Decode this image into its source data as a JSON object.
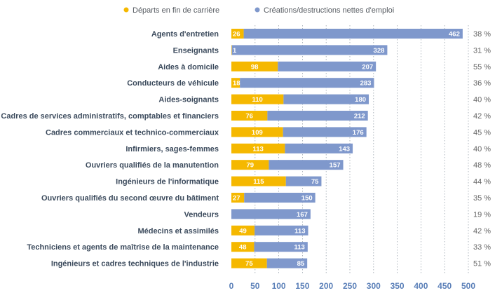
{
  "chart_data": {
    "type": "bar",
    "orientation": "horizontal",
    "stacked": true,
    "categories": [
      "Agents d'entretien",
      "Enseignants",
      "Aides à domicile",
      "Conducteurs de véhicule",
      "Aides-soignants",
      "Cadres de services administratifs, comptables et financiers",
      "Cadres commerciaux et technico-commerciaux",
      "Infirmiers, sages-femmes",
      "Ouvriers qualifiés de la manutention",
      "Ingénieurs de l'informatique",
      "Ouvriers qualifiés du second œuvre du bâtiment",
      "Vendeurs",
      "Médecins et assimilés",
      "Techniciens et agents de maîtrise de la maintenance",
      "Ingénieurs et cadres techniques de l'industrie"
    ],
    "series": [
      {
        "name": "Départs en fin de carrière",
        "color": "#f5b800",
        "values": [
          26,
          1,
          98,
          18,
          110,
          76,
          109,
          113,
          79,
          115,
          27,
          0,
          49,
          48,
          75
        ],
        "labels": [
          "26",
          "1",
          "98",
          "18",
          "110",
          "76",
          "109",
          "113",
          "79",
          "115",
          "27",
          "",
          "49",
          "48",
          "75"
        ]
      },
      {
        "name": "Créations/destructions nettes d'emploi",
        "color": "#7f98cc",
        "values": [
          462,
          328,
          207,
          283,
          180,
          212,
          176,
          143,
          157,
          75,
          150,
          167,
          113,
          113,
          85
        ],
        "labels": [
          "462",
          "328",
          "207",
          "283",
          "180",
          "212",
          "176",
          "143",
          "157",
          "75",
          "150",
          "167",
          "113",
          "113",
          "85"
        ]
      }
    ],
    "percentages": [
      "38 %",
      "31 %",
      "55 %",
      "36 %",
      "40 %",
      "42 %",
      "45 %",
      "40 %",
      "48 %",
      "44 %",
      "35 %",
      "19 %",
      "42 %",
      "33 %",
      "51 %"
    ],
    "xlim": [
      0,
      500
    ],
    "xticks": [
      "0",
      "50",
      "100",
      "150",
      "200",
      "250",
      "300",
      "350",
      "400",
      "450",
      "500"
    ],
    "grid": "vertical-dotted",
    "legend_position": "top"
  }
}
